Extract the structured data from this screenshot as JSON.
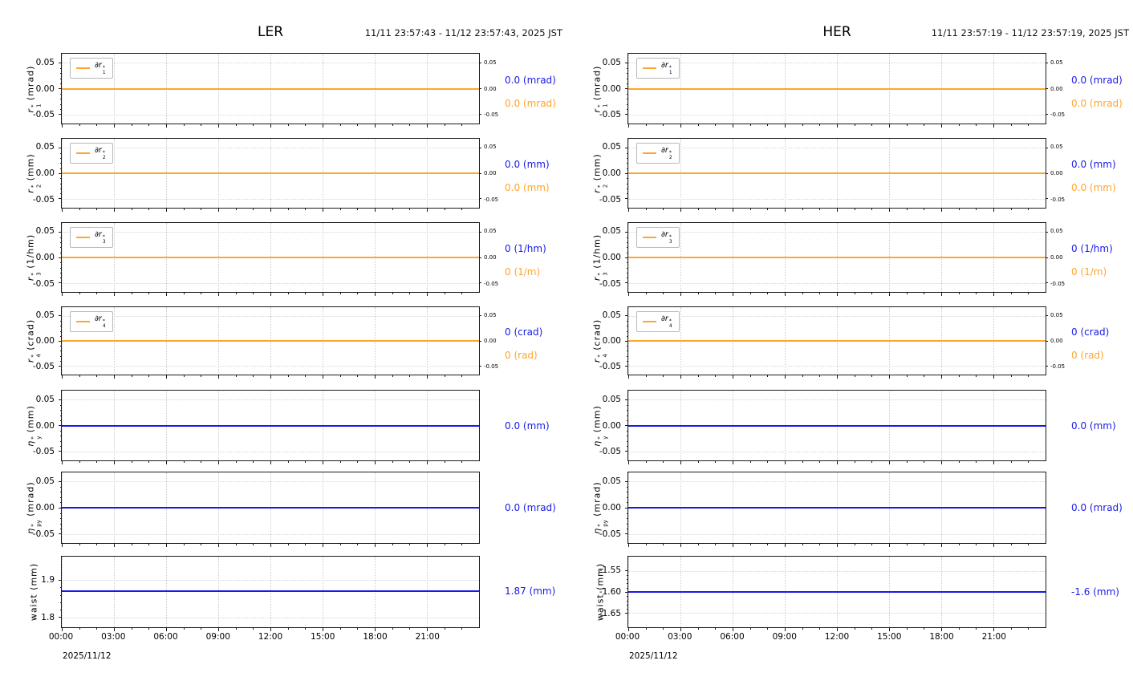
{
  "colors": {
    "blue": "#1a1ae8",
    "orange": "#ffa52b",
    "axis": "#1a1a1a",
    "grid": "#cccccc"
  },
  "x_axis": {
    "tick_labels": [
      "00:00",
      "03:00",
      "06:00",
      "09:00",
      "12:00",
      "15:00",
      "18:00",
      "21:00"
    ],
    "range_hours": [
      0,
      24
    ]
  },
  "chart_data": [
    {
      "type": "line",
      "title": "LER",
      "timespan": "11/11 23:57:43 - 11/12 23:57:43, 2025 JST",
      "date_label": "2025/11/12",
      "subplots": [
        {
          "ylabel": {
            "base": "r",
            "sub": "1",
            "sup": "*",
            "unit": "(mrad)",
            "italic": true
          },
          "legend": {
            "prefix": "∂",
            "base": "r",
            "sub": "1",
            "sup": "*"
          },
          "line": {
            "color": "orange",
            "value": 0.0,
            "pos": 0.5
          },
          "ylim": [
            -0.065,
            0.065
          ],
          "yticks": [
            {
              "label": "0.05",
              "pos": 0.13
            },
            {
              "label": "0.00",
              "pos": 0.5
            },
            {
              "label": "-0.05",
              "pos": 0.87
            }
          ],
          "right_ticks": true,
          "annotations": [
            {
              "text": "0.0 (mrad)",
              "color": "blue"
            },
            {
              "text": "0.0 (mrad)",
              "color": "orange"
            }
          ]
        },
        {
          "ylabel": {
            "base": "r",
            "sub": "2",
            "sup": "*",
            "unit": "(mm)",
            "italic": true
          },
          "legend": {
            "prefix": "∂",
            "base": "r",
            "sub": "2",
            "sup": "*"
          },
          "line": {
            "color": "orange",
            "value": 0.0,
            "pos": 0.5
          },
          "ylim": [
            -0.065,
            0.065
          ],
          "yticks": [
            {
              "label": "0.05",
              "pos": 0.13
            },
            {
              "label": "0.00",
              "pos": 0.5
            },
            {
              "label": "-0.05",
              "pos": 0.87
            }
          ],
          "right_ticks": true,
          "annotations": [
            {
              "text": "0.0 (mm)",
              "color": "blue"
            },
            {
              "text": "0.0 (mm)",
              "color": "orange"
            }
          ]
        },
        {
          "ylabel": {
            "base": "r",
            "sub": "3",
            "sup": "*",
            "unit": "(1/hm)",
            "italic": true
          },
          "legend": {
            "prefix": "∂",
            "base": "r",
            "sub": "3",
            "sup": "*"
          },
          "line": {
            "color": "orange",
            "value": 0,
            "pos": 0.5
          },
          "ylim": [
            -0.065,
            0.065
          ],
          "yticks": [
            {
              "label": "0.05",
              "pos": 0.13
            },
            {
              "label": "0.00",
              "pos": 0.5
            },
            {
              "label": "-0.05",
              "pos": 0.87
            }
          ],
          "right_ticks": true,
          "annotations": [
            {
              "text": "0 (1/hm)",
              "color": "blue"
            },
            {
              "text": "0 (1/m)",
              "color": "orange"
            }
          ]
        },
        {
          "ylabel": {
            "base": "r",
            "sub": "4",
            "sup": "*",
            "unit": "(crad)",
            "italic": true
          },
          "legend": {
            "prefix": "∂",
            "base": "r",
            "sub": "4",
            "sup": "*"
          },
          "line": {
            "color": "orange",
            "value": 0,
            "pos": 0.5
          },
          "ylim": [
            -0.065,
            0.065
          ],
          "yticks": [
            {
              "label": "0.05",
              "pos": 0.13
            },
            {
              "label": "0.00",
              "pos": 0.5
            },
            {
              "label": "-0.05",
              "pos": 0.87
            }
          ],
          "right_ticks": true,
          "annotations": [
            {
              "text": "0 (crad)",
              "color": "blue"
            },
            {
              "text": "0 (rad)",
              "color": "orange"
            }
          ]
        },
        {
          "ylabel": {
            "base": "η",
            "sub": "y",
            "sup": "*",
            "unit": "(mm)",
            "italic": true
          },
          "legend": null,
          "line": {
            "color": "blue",
            "value": 0.0,
            "pos": 0.5
          },
          "ylim": [
            -0.065,
            0.065
          ],
          "yticks": [
            {
              "label": "0.05",
              "pos": 0.13
            },
            {
              "label": "0.00",
              "pos": 0.5
            },
            {
              "label": "-0.05",
              "pos": 0.87
            }
          ],
          "right_ticks": false,
          "annotations": [
            {
              "text": "0.0 (mm)",
              "color": "blue"
            }
          ]
        },
        {
          "ylabel": {
            "base": "η",
            "sub": "py",
            "sup": "*",
            "unit": "(mrad)",
            "italic": true
          },
          "legend": null,
          "line": {
            "color": "blue",
            "value": 0.0,
            "pos": 0.5
          },
          "ylim": [
            -0.065,
            0.065
          ],
          "yticks": [
            {
              "label": "0.05",
              "pos": 0.13
            },
            {
              "label": "0.00",
              "pos": 0.5
            },
            {
              "label": "-0.05",
              "pos": 0.87
            }
          ],
          "right_ticks": false,
          "annotations": [
            {
              "text": "0.0 (mrad)",
              "color": "blue"
            }
          ]
        },
        {
          "ylabel": {
            "base": "waist",
            "unit": "(mm)",
            "italic": false
          },
          "legend": null,
          "line": {
            "color": "blue",
            "value": 1.87,
            "pos": 0.49
          },
          "ylim": [
            1.77,
            1.96
          ],
          "yticks": [
            {
              "label": "1.9",
              "pos": 0.33
            },
            {
              "label": "1.8",
              "pos": 0.86
            }
          ],
          "right_ticks": false,
          "annotations": [
            {
              "text": "1.87 (mm)",
              "color": "blue"
            }
          ]
        }
      ]
    },
    {
      "type": "line",
      "title": "HER",
      "timespan": "11/11 23:57:19 - 11/12 23:57:19, 2025 JST",
      "date_label": "2025/11/12",
      "subplots": [
        {
          "ylabel": {
            "base": "r",
            "sub": "1",
            "sup": "*",
            "unit": "(mrad)",
            "italic": true
          },
          "legend": {
            "prefix": "∂",
            "base": "r",
            "sub": "1",
            "sup": "*"
          },
          "line": {
            "color": "orange",
            "value": 0.0,
            "pos": 0.5
          },
          "ylim": [
            -0.065,
            0.065
          ],
          "yticks": [
            {
              "label": "0.05",
              "pos": 0.13
            },
            {
              "label": "0.00",
              "pos": 0.5
            },
            {
              "label": "-0.05",
              "pos": 0.87
            }
          ],
          "right_ticks": true,
          "annotations": [
            {
              "text": "0.0 (mrad)",
              "color": "blue"
            },
            {
              "text": "0.0 (mrad)",
              "color": "orange"
            }
          ]
        },
        {
          "ylabel": {
            "base": "r",
            "sub": "2",
            "sup": "*",
            "unit": "(mm)",
            "italic": true
          },
          "legend": {
            "prefix": "∂",
            "base": "r",
            "sub": "2",
            "sup": "*"
          },
          "line": {
            "color": "orange",
            "value": 0.0,
            "pos": 0.5
          },
          "ylim": [
            -0.065,
            0.065
          ],
          "yticks": [
            {
              "label": "0.05",
              "pos": 0.13
            },
            {
              "label": "0.00",
              "pos": 0.5
            },
            {
              "label": "-0.05",
              "pos": 0.87
            }
          ],
          "right_ticks": true,
          "annotations": [
            {
              "text": "0.0 (mm)",
              "color": "blue"
            },
            {
              "text": "0.0 (mm)",
              "color": "orange"
            }
          ]
        },
        {
          "ylabel": {
            "base": "r",
            "sub": "3",
            "sup": "*",
            "unit": "(1/hm)",
            "italic": true
          },
          "legend": {
            "prefix": "∂",
            "base": "r",
            "sub": "3",
            "sup": "*"
          },
          "line": {
            "color": "orange",
            "value": 0,
            "pos": 0.5
          },
          "ylim": [
            -0.065,
            0.065
          ],
          "yticks": [
            {
              "label": "0.05",
              "pos": 0.13
            },
            {
              "label": "0.00",
              "pos": 0.5
            },
            {
              "label": "-0.05",
              "pos": 0.87
            }
          ],
          "right_ticks": true,
          "annotations": [
            {
              "text": "0 (1/hm)",
              "color": "blue"
            },
            {
              "text": "0 (1/m)",
              "color": "orange"
            }
          ]
        },
        {
          "ylabel": {
            "base": "r",
            "sub": "4",
            "sup": "*",
            "unit": "(crad)",
            "italic": true
          },
          "legend": {
            "prefix": "∂",
            "base": "r",
            "sub": "4",
            "sup": "*"
          },
          "line": {
            "color": "orange",
            "value": 0,
            "pos": 0.5
          },
          "ylim": [
            -0.065,
            0.065
          ],
          "yticks": [
            {
              "label": "0.05",
              "pos": 0.13
            },
            {
              "label": "0.00",
              "pos": 0.5
            },
            {
              "label": "-0.05",
              "pos": 0.87
            }
          ],
          "right_ticks": true,
          "annotations": [
            {
              "text": "0 (crad)",
              "color": "blue"
            },
            {
              "text": "0 (rad)",
              "color": "orange"
            }
          ]
        },
        {
          "ylabel": {
            "base": "η",
            "sub": "y",
            "sup": "*",
            "unit": "(mm)",
            "italic": true
          },
          "legend": null,
          "line": {
            "color": "blue",
            "value": 0.0,
            "pos": 0.5
          },
          "ylim": [
            -0.065,
            0.065
          ],
          "yticks": [
            {
              "label": "0.05",
              "pos": 0.13
            },
            {
              "label": "0.00",
              "pos": 0.5
            },
            {
              "label": "-0.05",
              "pos": 0.87
            }
          ],
          "right_ticks": false,
          "annotations": [
            {
              "text": "0.0 (mm)",
              "color": "blue"
            }
          ]
        },
        {
          "ylabel": {
            "base": "η",
            "sub": "py",
            "sup": "*",
            "unit": "(mrad)",
            "italic": true
          },
          "legend": null,
          "line": {
            "color": "blue",
            "value": 0.0,
            "pos": 0.5
          },
          "ylim": [
            -0.065,
            0.065
          ],
          "yticks": [
            {
              "label": "0.05",
              "pos": 0.13
            },
            {
              "label": "0.00",
              "pos": 0.5
            },
            {
              "label": "-0.05",
              "pos": 0.87
            }
          ],
          "right_ticks": false,
          "annotations": [
            {
              "text": "0.0 (mrad)",
              "color": "blue"
            }
          ]
        },
        {
          "ylabel": {
            "base": "waist",
            "unit": "(mm)",
            "italic": false
          },
          "legend": null,
          "line": {
            "color": "blue",
            "value": -1.6,
            "pos": 0.5
          },
          "ylim": [
            -1.68,
            -1.52
          ],
          "yticks": [
            {
              "label": "-1.55",
              "pos": 0.2
            },
            {
              "label": "-1.60",
              "pos": 0.5
            },
            {
              "label": "-1.65",
              "pos": 0.8
            }
          ],
          "right_ticks": false,
          "annotations": [
            {
              "text": "-1.6 (mm)",
              "color": "blue"
            }
          ]
        }
      ]
    }
  ]
}
